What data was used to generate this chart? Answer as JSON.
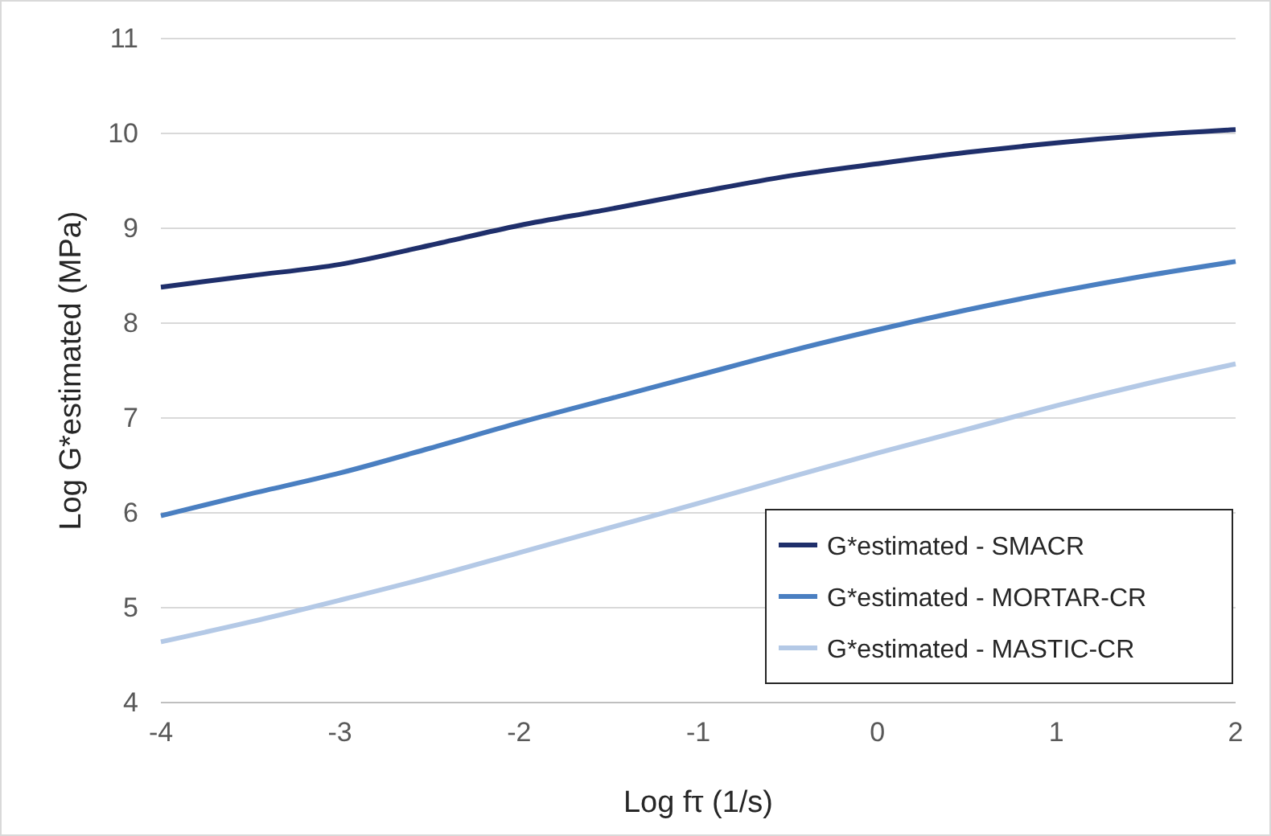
{
  "chart_data": {
    "type": "line",
    "xlabel": "Log fτ (1/s)",
    "ylabel": "Log G*estimated (MPa)",
    "xlim": [
      -4,
      2
    ],
    "xticks": [
      -4,
      -3,
      -2,
      -1,
      0,
      1,
      2
    ],
    "ylim": [
      4,
      11
    ],
    "yticks": [
      4,
      5,
      6,
      7,
      8,
      9,
      10,
      11
    ],
    "grid": "y",
    "legend": "bottom right",
    "marker": "none",
    "line_style": "solid",
    "series": [
      {
        "name": "G*estimated - SMACR",
        "color": "#1f2f6b",
        "x": [
          -4,
          -3.5,
          -3,
          -2.5,
          -2,
          -1.5,
          -1,
          -0.5,
          0,
          0.5,
          1,
          1.5,
          2
        ],
        "values": [
          8.38,
          8.5,
          8.62,
          8.82,
          9.03,
          9.2,
          9.38,
          9.55,
          9.68,
          9.8,
          9.9,
          9.98,
          10.04
        ]
      },
      {
        "name": "G*estimated - MORTAR-CR",
        "color": "#4a7fc1",
        "x": [
          -4,
          -3.5,
          -3,
          -2.5,
          -2,
          -1.5,
          -1,
          -0.5,
          0,
          0.5,
          1,
          1.5,
          2
        ],
        "values": [
          5.97,
          6.2,
          6.42,
          6.68,
          6.95,
          7.2,
          7.45,
          7.7,
          7.93,
          8.14,
          8.33,
          8.5,
          8.65
        ]
      },
      {
        "name": "G*estimated - MASTIC-CR",
        "color": "#b4c9e6",
        "x": [
          -4,
          -3.5,
          -3,
          -2.5,
          -2,
          -1.5,
          -1,
          -0.5,
          0,
          0.5,
          1,
          1.5,
          2
        ],
        "values": [
          4.64,
          4.85,
          5.08,
          5.32,
          5.58,
          5.84,
          6.1,
          6.37,
          6.63,
          6.88,
          7.13,
          7.36,
          7.57
        ]
      }
    ]
  }
}
